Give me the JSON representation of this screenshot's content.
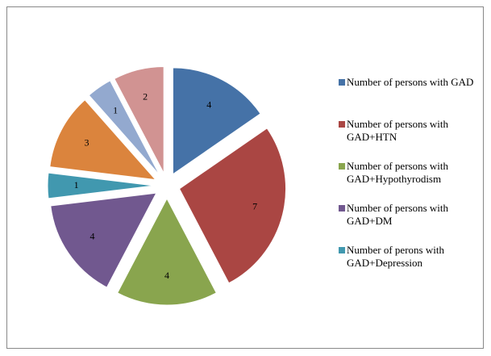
{
  "chart_data": {
    "type": "pie",
    "categories": [
      "Number of persons with GAD",
      "Number of persons with GAD+HTN",
      "Number of persons with GAD+Hypothyrodism",
      "Number of persons with GAD+DM",
      "Number of perons with GAD+Depression",
      null,
      null,
      null
    ],
    "values": [
      4,
      7,
      4,
      4,
      1,
      3,
      1,
      2
    ],
    "colors": [
      "#4572a7",
      "#aa4643",
      "#89a54e",
      "#71588f",
      "#4198af",
      "#db843d",
      "#93a9cf",
      "#d19392"
    ],
    "exploded": true
  }
}
